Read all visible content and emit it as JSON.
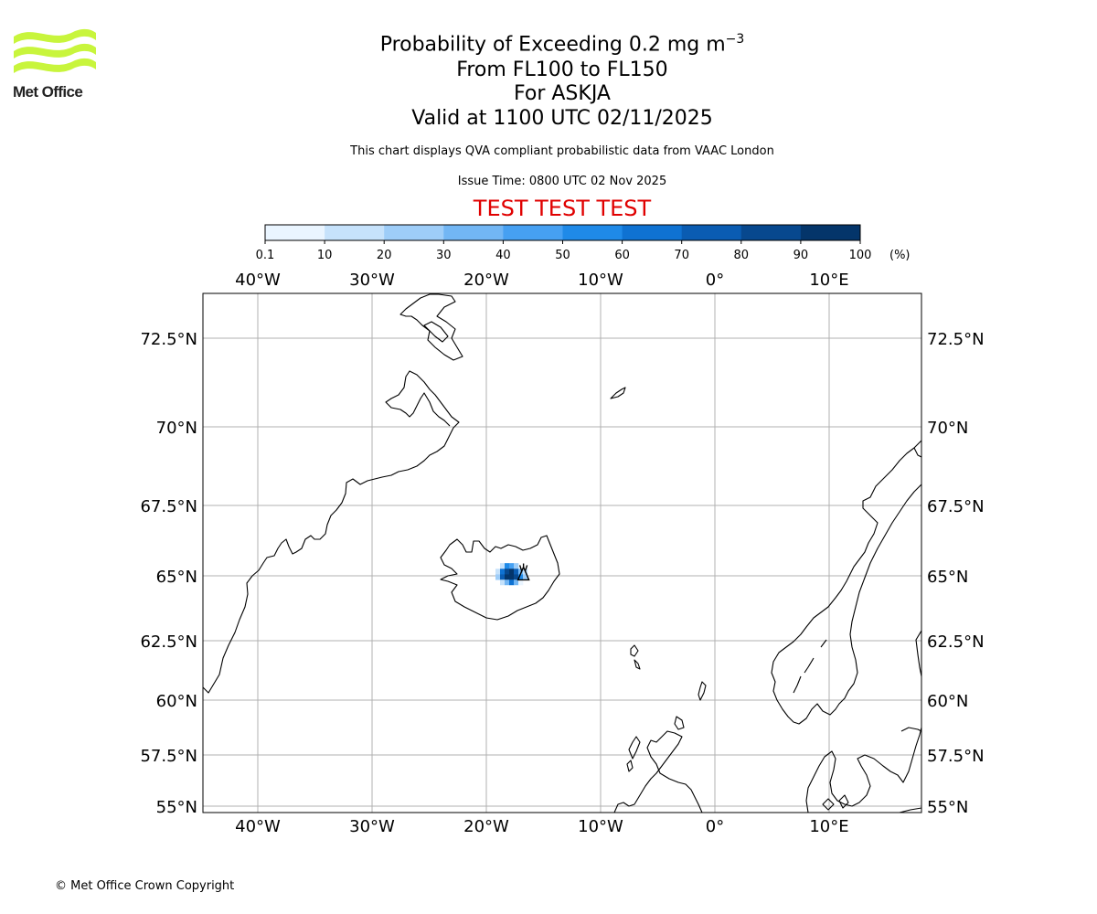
{
  "header": {
    "title_prefix": "Probability of Exceeding 0.2 mg m",
    "title_superscript": "−3",
    "level_range": "From FL100 to FL150",
    "volcano": "For ASKJA",
    "valid_time": "Valid at 1100 UTC 02/11/2025",
    "source_note": "This chart displays QVA compliant probabilistic data from VAAC London",
    "issue_time": "Issue Time: 0800 UTC 02 Nov 2025",
    "test_banner": "TEST TEST TEST"
  },
  "logo": {
    "wordmark": "Met Office",
    "brand_color": "#c8f53c"
  },
  "colorbar": {
    "unit": "(%)",
    "ticks": [
      "0.1",
      "10",
      "20",
      "30",
      "40",
      "50",
      "60",
      "70",
      "80",
      "90",
      "100"
    ],
    "colors": [
      "#eaf5ff",
      "#c6e2fb",
      "#9ecdf8",
      "#72b6f4",
      "#46a0f2",
      "#1f8ae8",
      "#0f72d2",
      "#0a5cb2",
      "#07488e",
      "#04356a",
      "#022a54"
    ]
  },
  "map": {
    "lon_labels": [
      "40°W",
      "30°W",
      "20°W",
      "10°W",
      "0°",
      "10°E"
    ],
    "lat_labels": [
      "72.5°N",
      "70°N",
      "67.5°N",
      "65°N",
      "62.5°N",
      "60°N",
      "57.5°N",
      "55°N"
    ],
    "lon_values": [
      -40,
      -30,
      -20,
      -10,
      0,
      10
    ],
    "lat_values": [
      72.5,
      70,
      67.5,
      65,
      62.5,
      60,
      57.5,
      55
    ],
    "volcano_name": "ASKJA",
    "volcano_lon": -16.75,
    "volcano_lat": 65.05,
    "ash_cells": [
      {
        "lon": -18.6,
        "lat": 65.35,
        "p": 20
      },
      {
        "lon": -18.2,
        "lat": 65.35,
        "p": 60
      },
      {
        "lon": -17.8,
        "lat": 65.35,
        "p": 50
      },
      {
        "lon": -17.4,
        "lat": 65.35,
        "p": 30
      },
      {
        "lon": -19.0,
        "lat": 65.15,
        "p": 20
      },
      {
        "lon": -18.6,
        "lat": 65.15,
        "p": 70
      },
      {
        "lon": -18.2,
        "lat": 65.15,
        "p": 90
      },
      {
        "lon": -17.8,
        "lat": 65.15,
        "p": 100
      },
      {
        "lon": -17.4,
        "lat": 65.15,
        "p": 80
      },
      {
        "lon": -17.0,
        "lat": 65.15,
        "p": 40
      },
      {
        "lon": -16.6,
        "lat": 65.15,
        "p": 20
      },
      {
        "lon": -19.0,
        "lat": 64.95,
        "p": 30
      },
      {
        "lon": -18.6,
        "lat": 64.95,
        "p": 80
      },
      {
        "lon": -18.2,
        "lat": 64.95,
        "p": 100
      },
      {
        "lon": -17.8,
        "lat": 64.95,
        "p": 100
      },
      {
        "lon": -17.4,
        "lat": 64.95,
        "p": 90
      },
      {
        "lon": -17.0,
        "lat": 64.95,
        "p": 60
      },
      {
        "lon": -16.6,
        "lat": 64.95,
        "p": 30
      },
      {
        "lon": -18.6,
        "lat": 64.75,
        "p": 20
      },
      {
        "lon": -18.2,
        "lat": 64.75,
        "p": 40
      },
      {
        "lon": -17.8,
        "lat": 64.75,
        "p": 70
      },
      {
        "lon": -17.4,
        "lat": 64.75,
        "p": 40
      },
      {
        "lon": -17.0,
        "lat": 64.75,
        "p": 10
      }
    ]
  },
  "footer": {
    "copyright": "© Met Office Crown Copyright"
  }
}
